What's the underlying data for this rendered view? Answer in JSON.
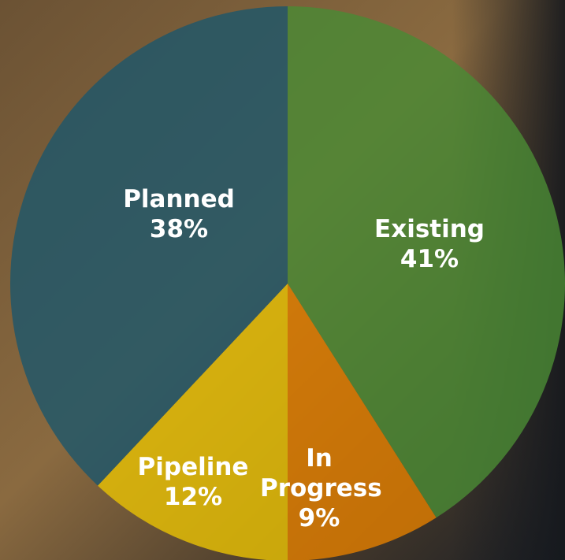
{
  "chart_data": {
    "type": "pie",
    "categories": [
      "Existing",
      "In Progress",
      "Pipeline",
      "Planned"
    ],
    "values": [
      41,
      9,
      12,
      38
    ],
    "value_labels": [
      "41%",
      "9%",
      "12%",
      "38%"
    ],
    "colors": [
      "#4b8a35",
      "#e07e00",
      "#e6bf05",
      "#1e576a"
    ]
  }
}
